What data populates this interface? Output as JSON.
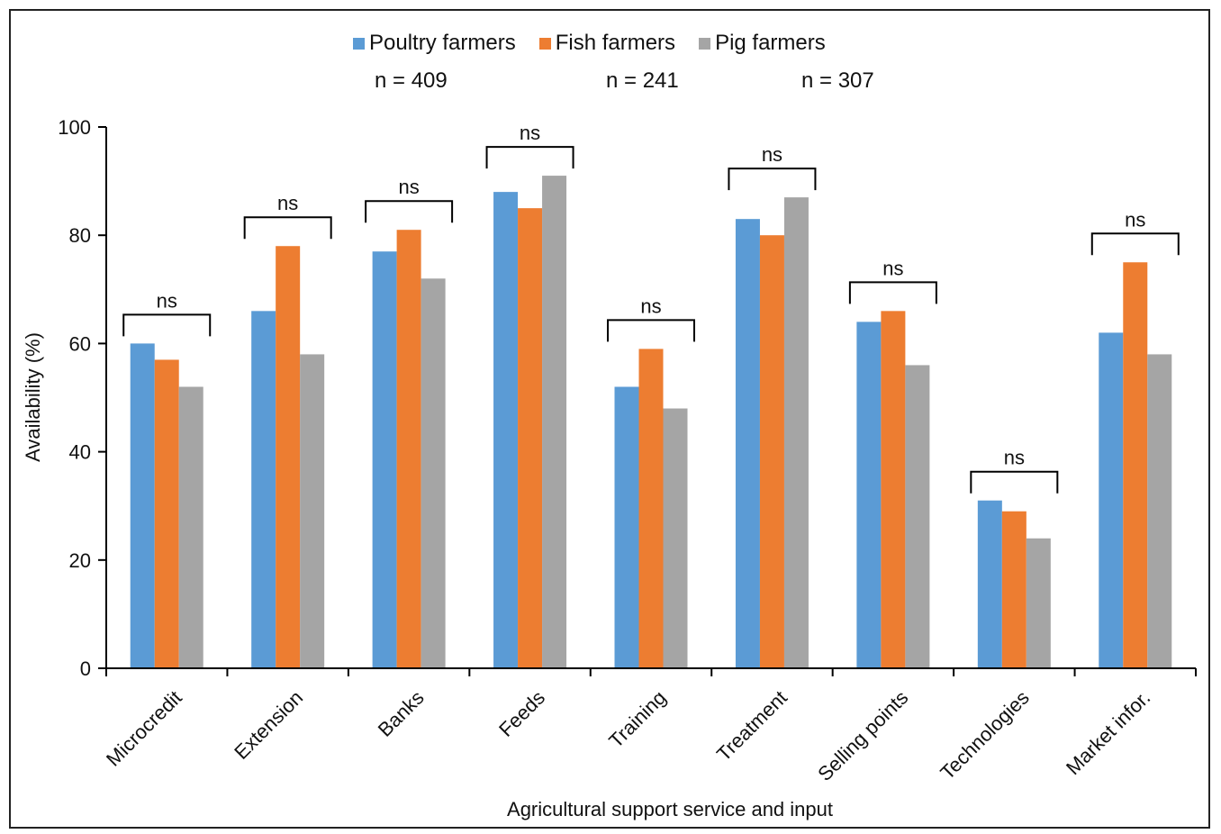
{
  "chart_data": {
    "type": "bar",
    "categories": [
      "Microcredit",
      "Extension",
      "Banks",
      "Feeds",
      "Training",
      "Treatment",
      "Selling points",
      "Technologies",
      "Market infor."
    ],
    "series": [
      {
        "name": "Poultry farmers",
        "color": "#5b9bd5",
        "values": [
          60,
          66,
          77,
          88,
          52,
          83,
          64,
          31,
          62
        ]
      },
      {
        "name": "Fish farmers",
        "color": "#ed7d31",
        "values": [
          57,
          78,
          81,
          85,
          59,
          80,
          66,
          29,
          75
        ]
      },
      {
        "name": "Pig farmers",
        "color": "#a5a5a5",
        "values": [
          52,
          58,
          72,
          91,
          48,
          87,
          56,
          24,
          58
        ]
      }
    ],
    "sample_sizes": [
      "n = 409",
      "n = 241",
      "n = 307"
    ],
    "annotations": [
      "ns",
      "ns",
      "ns",
      "ns",
      "ns",
      "ns",
      "ns",
      "ns",
      "ns"
    ],
    "xlabel": "Agricultural  support  service and  input",
    "ylabel": "Availability  (%)",
    "ylim": [
      0,
      100
    ],
    "yticks": [
      0,
      20,
      40,
      60,
      80,
      100
    ],
    "grid": false,
    "legend_position": "top"
  }
}
